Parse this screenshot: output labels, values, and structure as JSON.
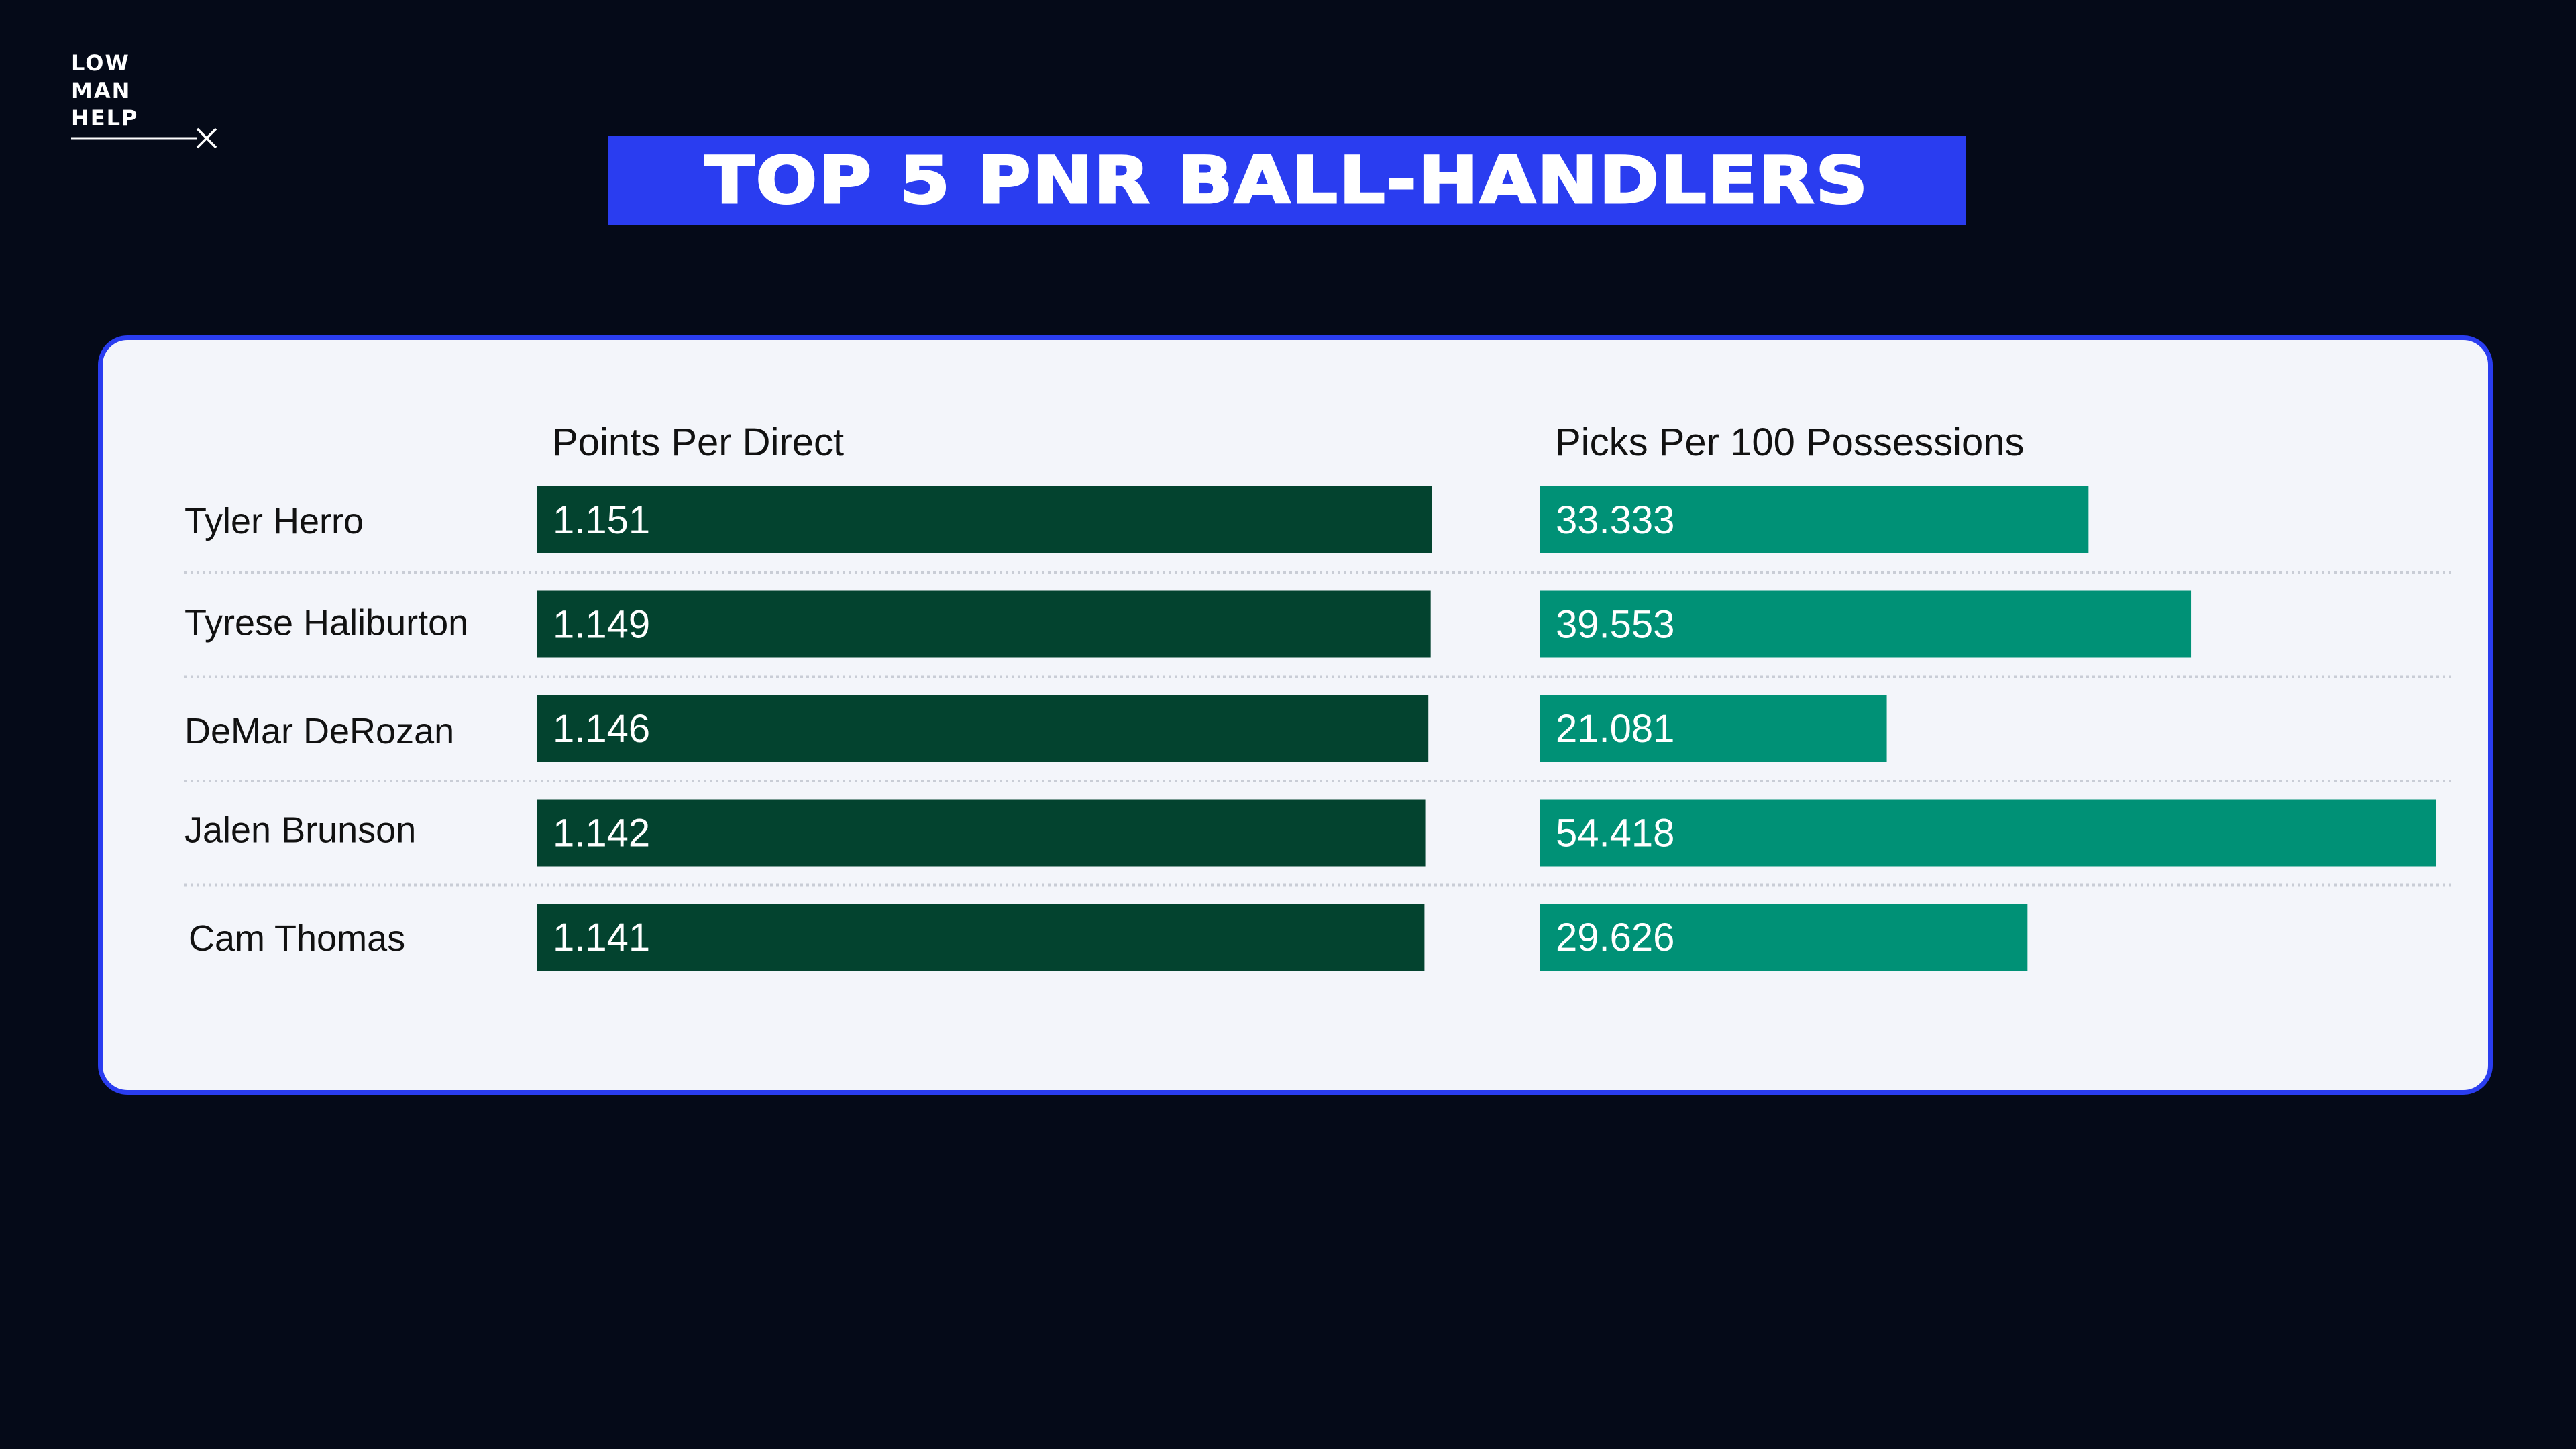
{
  "logo": {
    "lines": [
      "LOW",
      "MAN",
      "HELP"
    ]
  },
  "title": "TOP 5 PNR BALL-HANDLERS",
  "colors": {
    "background": "#050a18",
    "title_box": "#2a3df0",
    "panel": "#f3f5fa",
    "panel_border": "#2a3df0",
    "ppd_bar": "#03432f",
    "picks_bar": "#009176"
  },
  "chart_data": {
    "type": "bar",
    "orientation": "horizontal",
    "title": "TOP 5 PNR BALL-HANDLERS",
    "categories": [
      "Tyler Herro",
      "Tyrese Haliburton",
      "DeMar DeRozan",
      "Jalen Brunson",
      "Cam Thomas"
    ],
    "series": [
      {
        "name": "Points Per Direct",
        "values": [
          1.151,
          1.149,
          1.146,
          1.142,
          1.141
        ],
        "labels": [
          "1.151",
          "1.149",
          "1.146",
          "1.142",
          "1.141"
        ]
      },
      {
        "name": "Picks Per 100 Possessions",
        "values": [
          33.333,
          39.553,
          21.081,
          54.418,
          29.626
        ],
        "labels": [
          "33.333",
          "39.553",
          "21.081",
          "54.418",
          "29.626"
        ]
      }
    ],
    "grid": false,
    "legend": "column headers above bars"
  }
}
